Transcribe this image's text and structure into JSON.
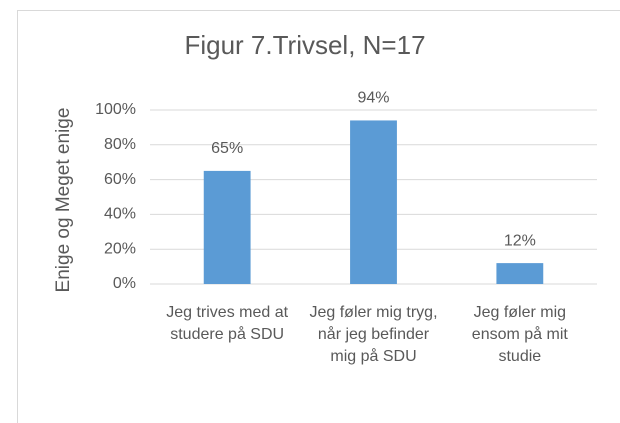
{
  "chart_data": {
    "type": "bar",
    "title": "Figur 7.Trivsel, N=17",
    "y_label": "Enige og Meget enige",
    "categories": [
      "Jeg trives med at studere på SDU",
      "Jeg føler mig tryg, når jeg befinder mig på SDU",
      "Jeg føler mig ensom på mit studie"
    ],
    "values": [
      65,
      94,
      12
    ],
    "value_labels": [
      "65%",
      "94%",
      "12%"
    ],
    "color": "#5b9bd5",
    "ylim": [
      0,
      100
    ],
    "yticks": [
      {
        "value": 0,
        "label": "0%"
      },
      {
        "value": 20,
        "label": "20%"
      },
      {
        "value": 40,
        "label": "40%"
      },
      {
        "value": 60,
        "label": "60%"
      },
      {
        "value": 80,
        "label": "80%"
      },
      {
        "value": 100,
        "label": "100%"
      }
    ],
    "grid": true
  }
}
